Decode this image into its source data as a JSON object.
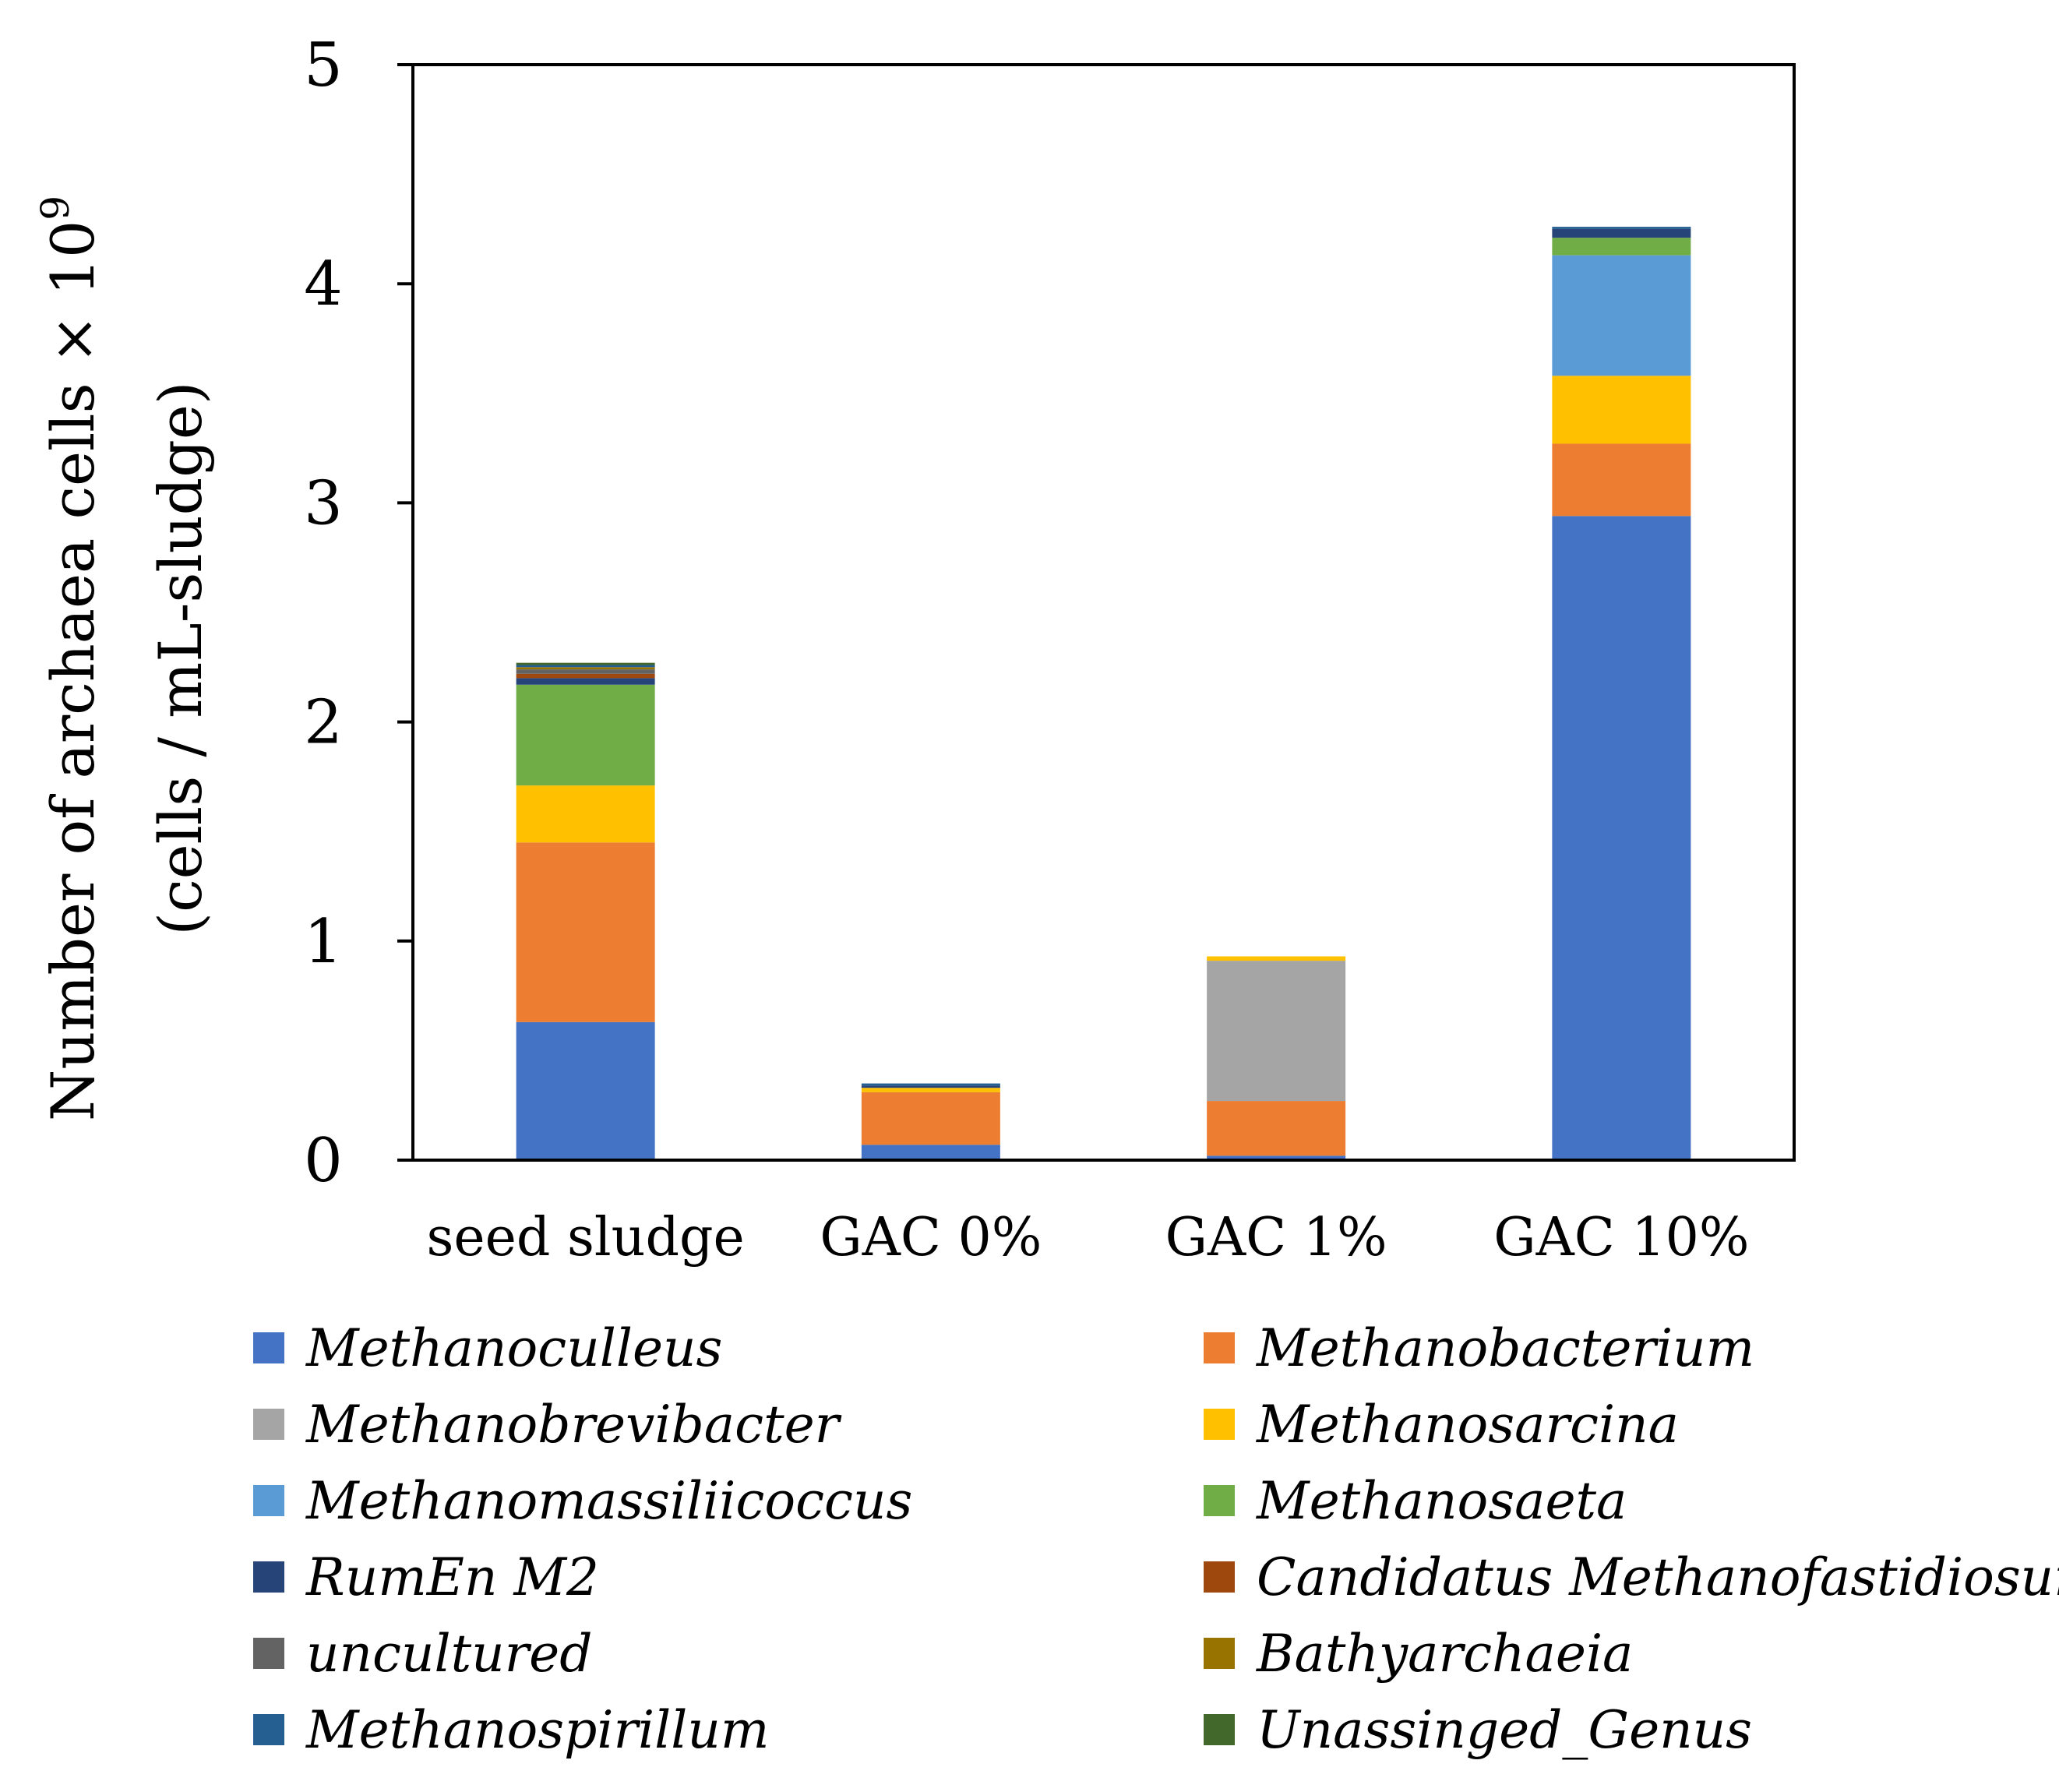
{
  "chart_data": {
    "type": "bar",
    "stacked": true,
    "title": "",
    "xlabel": "",
    "ylabel": "Number of archaea cells × 10",
    "ylabel_superscript": "9",
    "ylabel_line2": "(cells / mL-sludge)",
    "ylim": [
      0,
      5
    ],
    "yticks": [
      "0",
      "1",
      "2",
      "3",
      "4",
      "5"
    ],
    "categories": [
      "seed sludge",
      "GAC 0%",
      "GAC 1%",
      "GAC 10%"
    ],
    "legend_position": "bottom",
    "series": [
      {
        "name": "Methanoculleus",
        "color": "#4472C4",
        "values": [
          0.63,
          0.07,
          0.02,
          2.94
        ]
      },
      {
        "name": "Methanobacterium",
        "color": "#ED7D31",
        "values": [
          0.82,
          0.24,
          0.25,
          0.33
        ]
      },
      {
        "name": "Methanobrevibacter",
        "color": "#A5A5A5",
        "values": [
          0.0,
          0.0,
          0.64,
          0.0
        ]
      },
      {
        "name": "Methanosarcina",
        "color": "#FFC000",
        "values": [
          0.26,
          0.02,
          0.02,
          0.31
        ]
      },
      {
        "name": "Methanomassiliicoccus",
        "color": "#5B9BD5",
        "values": [
          0.0,
          0.0,
          0.0,
          0.55
        ]
      },
      {
        "name": "Methanosaeta",
        "color": "#70AD47",
        "values": [
          0.46,
          0.0,
          0.0,
          0.08
        ]
      },
      {
        "name": "RumEn M2",
        "color": "#264478",
        "values": [
          0.03,
          0.01,
          0.0,
          0.04
        ]
      },
      {
        "name": "Candidatus Methanofastidiosum",
        "color": "#9E480E",
        "values": [
          0.02,
          0.0,
          0.0,
          0.0
        ]
      },
      {
        "name": "uncultured",
        "color": "#636363",
        "values": [
          0.02,
          0.0,
          0.0,
          0.0
        ]
      },
      {
        "name": "Bathyarchaeia",
        "color": "#997300",
        "values": [
          0.01,
          0.0,
          0.0,
          0.0
        ]
      },
      {
        "name": "Methanospirillum",
        "color": "#255E91",
        "values": [
          0.01,
          0.01,
          0.0,
          0.01
        ]
      },
      {
        "name": "Unassinged_Genus",
        "color": "#43682B",
        "values": [
          0.01,
          0.0,
          0.0,
          0.0
        ]
      }
    ]
  }
}
